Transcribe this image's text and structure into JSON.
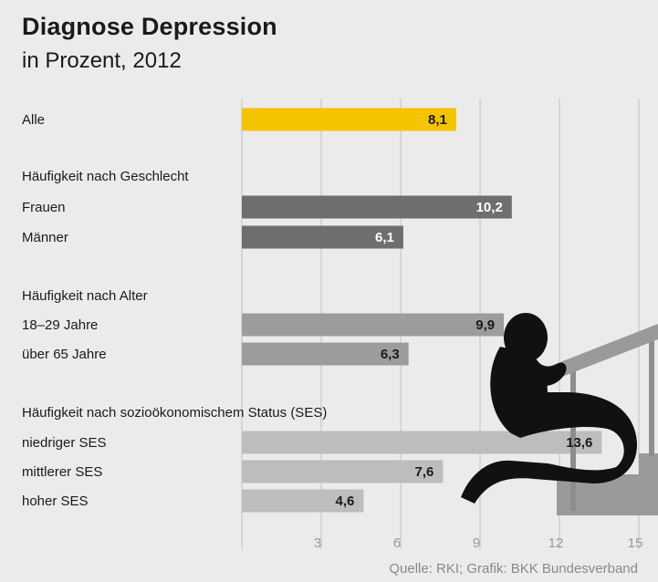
{
  "title": "Diagnose Depression",
  "subtitle": "in Prozent, 2012",
  "source": "Quelle: RKI; Grafik: BKK Bundesverband",
  "chart_data": {
    "type": "bar",
    "orientation": "horizontal",
    "title": "Diagnose Depression",
    "subtitle": "in Prozent, 2012",
    "xlim": [
      0,
      15
    ],
    "xticks": [
      3,
      6,
      9,
      12,
      15
    ],
    "grid": true,
    "groups": [
      {
        "label": "",
        "rows": [
          {
            "label": "Alle",
            "value": 8.1,
            "display": "8,1",
            "color": "#f5c400"
          }
        ]
      },
      {
        "label": "Häufigkeit nach Geschlecht",
        "rows": [
          {
            "label": "Frauen",
            "value": 10.2,
            "display": "10,2",
            "color": "#6e6e6e"
          },
          {
            "label": "Männer",
            "value": 6.1,
            "display": "6,1",
            "color": "#6e6e6e"
          }
        ]
      },
      {
        "label": "Häufigkeit nach Alter",
        "rows": [
          {
            "label": "18–29 Jahre",
            "value": 9.9,
            "display": "9,9",
            "color": "#9c9c9c"
          },
          {
            "label": "über 65 Jahre",
            "value": 6.3,
            "display": "6,3",
            "color": "#9c9c9c"
          }
        ]
      },
      {
        "label": "Häufigkeit nach soziоökonomischem Status (SES)",
        "rows": [
          {
            "label": "niedriger SES",
            "value": 13.6,
            "display": "13,6",
            "color": "#bdbdbd"
          },
          {
            "label": "mittlerer SES",
            "value": 7.6,
            "display": "7,6",
            "color": "#bdbdbd"
          },
          {
            "label": "hoher SES",
            "value": 4.6,
            "display": "4,6",
            "color": "#bdbdbd"
          }
        ]
      }
    ]
  }
}
